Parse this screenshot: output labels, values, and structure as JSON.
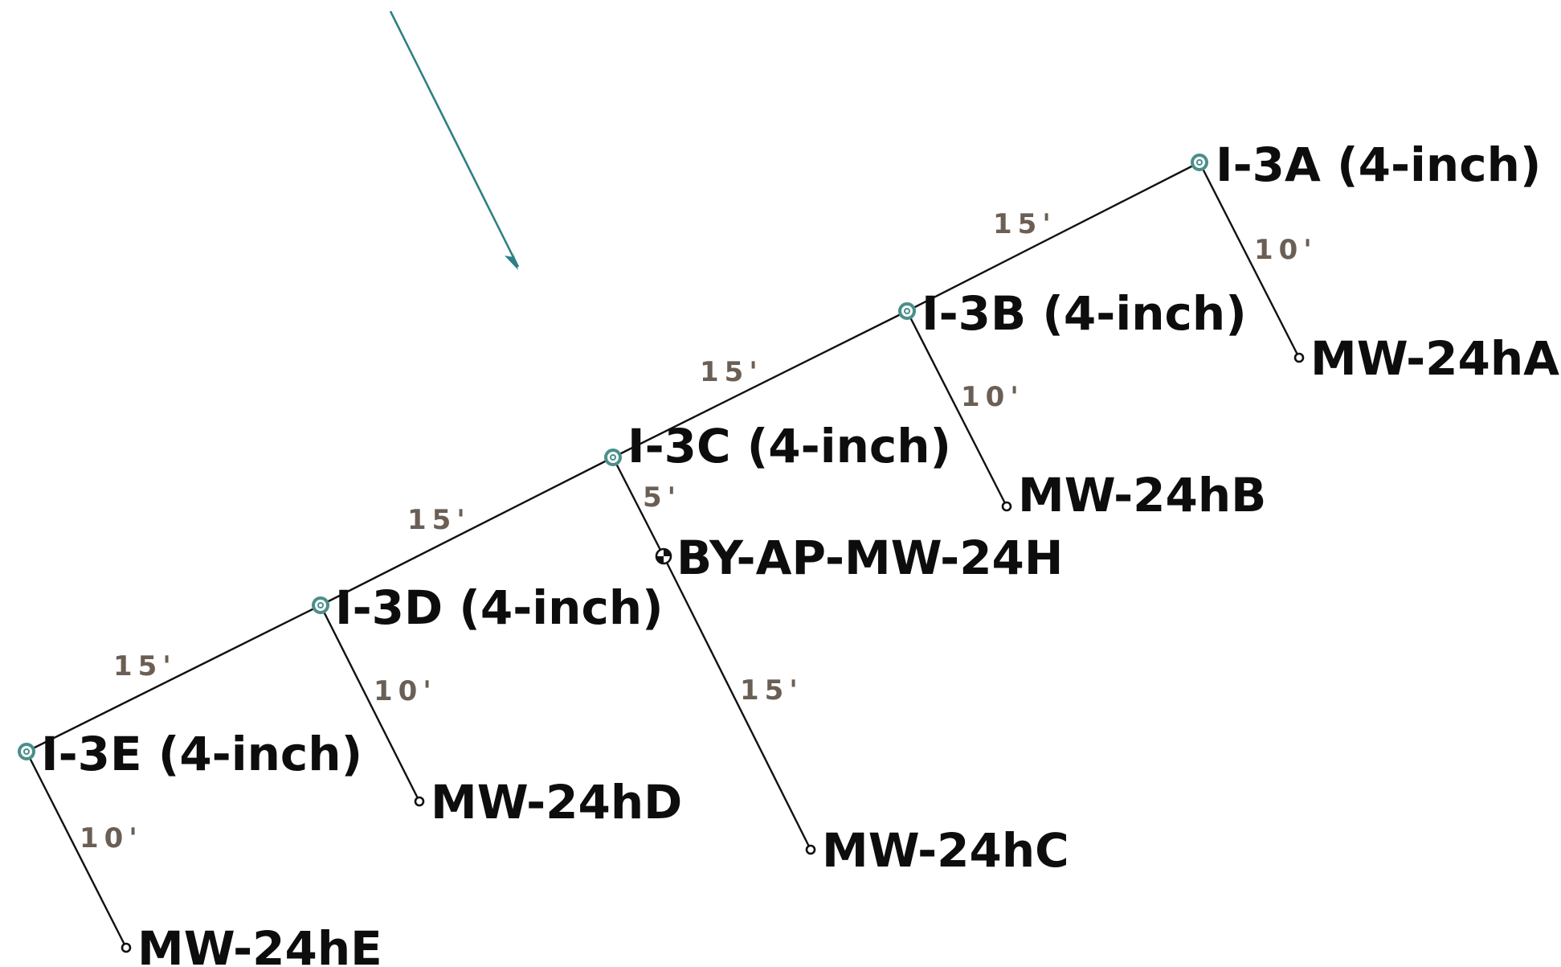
{
  "injection_wells": [
    {
      "id": "I-3A",
      "label": "I-3A (4-inch)"
    },
    {
      "id": "I-3B",
      "label": "I-3B (4-inch)"
    },
    {
      "id": "I-3C",
      "label": "I-3C (4-inch)"
    },
    {
      "id": "I-3D",
      "label": "I-3D (4-inch)"
    },
    {
      "id": "I-3E",
      "label": "I-3E (4-inch)"
    }
  ],
  "monitoring_wells": [
    {
      "id": "MW-24hA",
      "label": "MW-24hA"
    },
    {
      "id": "MW-24hB",
      "label": "MW-24hB"
    },
    {
      "id": "BY-AP-MW-24H",
      "label": "BY-AP-MW-24H"
    },
    {
      "id": "MW-24hC",
      "label": "MW-24hC"
    },
    {
      "id": "MW-24hD",
      "label": "MW-24hD"
    },
    {
      "id": "MW-24hE",
      "label": "MW-24hE"
    }
  ],
  "spacing_labels": [
    {
      "from": "I-3A",
      "to": "I-3B",
      "label": "15'"
    },
    {
      "from": "I-3B",
      "to": "I-3C",
      "label": "15'"
    },
    {
      "from": "I-3C",
      "to": "I-3D",
      "label": "15'"
    },
    {
      "from": "I-3D",
      "to": "I-3E",
      "label": "15'"
    },
    {
      "from": "I-3A",
      "to": "MW-24hA",
      "label": "10'"
    },
    {
      "from": "I-3B",
      "to": "MW-24hB",
      "label": "10'"
    },
    {
      "from": "I-3C",
      "to": "BY-AP-MW-24H",
      "label": "5'"
    },
    {
      "from": "BY-AP-MW-24H",
      "to": "MW-24hC",
      "label": "15'"
    },
    {
      "from": "I-3D",
      "to": "MW-24hD",
      "label": "10'"
    },
    {
      "from": "I-3E",
      "to": "MW-24hE",
      "label": "10'"
    }
  ],
  "colors": {
    "injection_well": "#4a8f8a",
    "arrow": "#2f7f86",
    "distance_text": "#6b5f55",
    "line": "#111111"
  },
  "icons": {
    "injection_well": "well-target-icon",
    "monitoring_well": "point-icon",
    "bypass_well": "quartered-circle-icon",
    "arrow": "flow-direction-arrow"
  }
}
